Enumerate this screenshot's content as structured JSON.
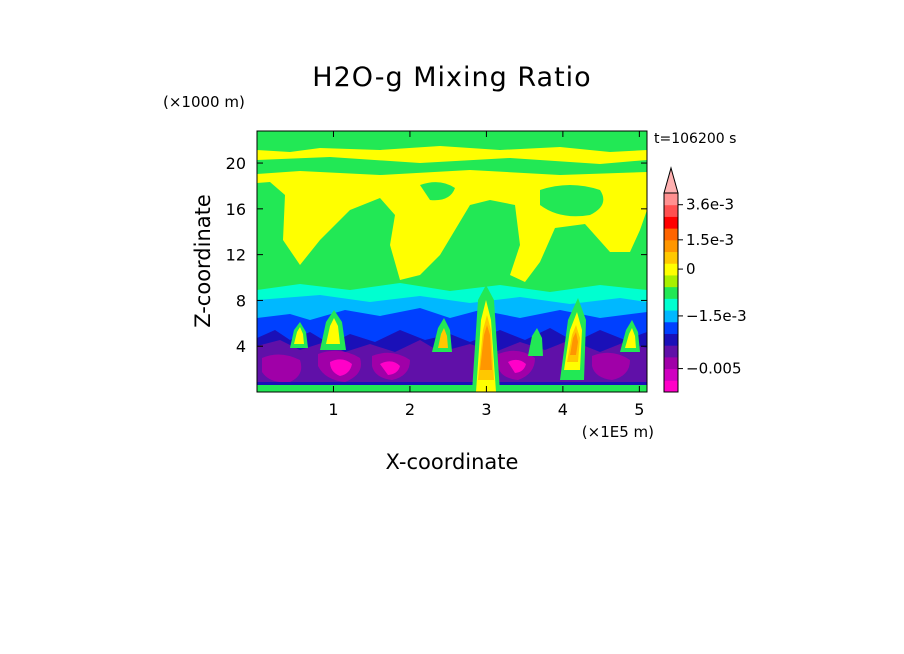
{
  "chart_data": {
    "type": "heatmap",
    "title": "H2O-g Mixing Ratio",
    "xlabel": "X-coordinate",
    "ylabel": "Z-coordinate",
    "x_unit": "(×1E5 m)",
    "y_unit": "(×1000 m)",
    "time_label": "t=106200 s",
    "xlim": [
      0,
      5.1
    ],
    "ylim": [
      0,
      22.8
    ],
    "x_ticks": [
      {
        "value": 1,
        "label": "1"
      },
      {
        "value": 2,
        "label": "2"
      },
      {
        "value": 3,
        "label": "3"
      },
      {
        "value": 4,
        "label": "4"
      },
      {
        "value": 5,
        "label": "5"
      }
    ],
    "y_ticks": [
      {
        "value": 4,
        "label": "4"
      },
      {
        "value": 8,
        "label": "8"
      },
      {
        "value": 12,
        "label": "12"
      },
      {
        "value": 16,
        "label": "16"
      },
      {
        "value": 20,
        "label": "20"
      }
    ],
    "colorbar": {
      "colors": [
        "#ff00c8",
        "#d000c0",
        "#a000a8",
        "#6010a8",
        "#1a10b8",
        "#0040ff",
        "#00b8ff",
        "#00ffd0",
        "#22e855",
        "#a8f000",
        "#ffff00",
        "#ffc800",
        "#ff9600",
        "#ff6400",
        "#ff0000",
        "#ff5050",
        "#ff9090"
      ],
      "arrow_color": "#ffb0b0",
      "labels": [
        {
          "level": 16,
          "text": "3.6e-3"
        },
        {
          "level": 13,
          "text": "1.5e-3"
        },
        {
          "level": 10.5,
          "text": "0"
        },
        {
          "level": 6.5,
          "text": "−1.5e-3"
        },
        {
          "level": 2,
          "text": "−0.005"
        }
      ]
    },
    "field": {
      "background_color": "#ffff00",
      "levels": [
        {
          "name": "upper-green",
          "color": "#22e855"
        },
        {
          "name": "cyan",
          "color": "#00ffd0"
        },
        {
          "name": "sky",
          "color": "#00b8ff"
        },
        {
          "name": "blue",
          "color": "#0040ff"
        },
        {
          "name": "navy",
          "color": "#1a10b8"
        },
        {
          "name": "purple",
          "color": "#6010a8"
        },
        {
          "name": "violet",
          "color": "#a000a8"
        },
        {
          "name": "magenta",
          "color": "#ff00c8"
        }
      ]
    }
  }
}
